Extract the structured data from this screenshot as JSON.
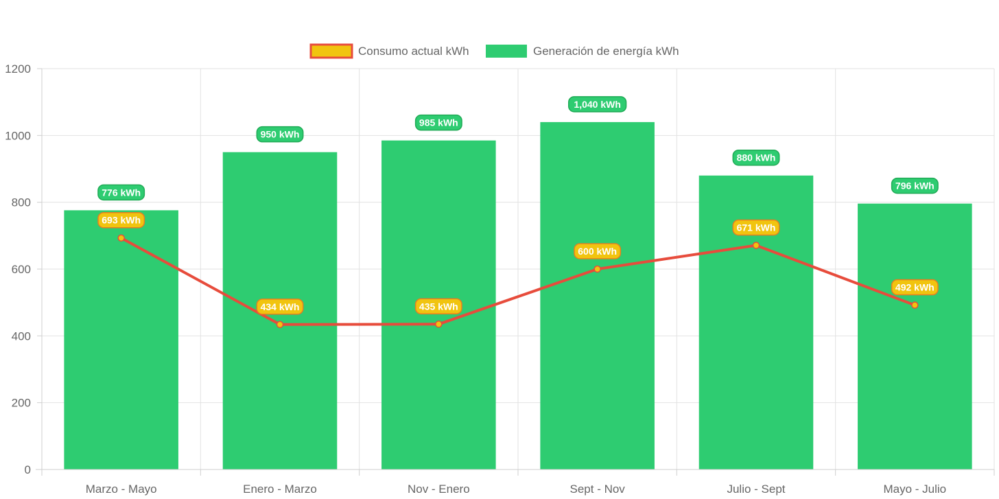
{
  "chart_data": {
    "type": "bar",
    "categories": [
      "Marzo - Mayo",
      "Enero - Marzo",
      "Nov - Enero",
      "Sept - Nov",
      "Julio - Sept",
      "Mayo - Julio"
    ],
    "ylim": [
      0,
      1200
    ],
    "yticks": [
      0,
      200,
      400,
      600,
      800,
      1000,
      1200
    ],
    "ytick_labels": [
      "0",
      "200",
      "400",
      "600",
      "800",
      "1000",
      "1200"
    ],
    "grid": true,
    "legend_position": "top-center",
    "series": [
      {
        "name": "Consumo actual kWh",
        "type": "line",
        "values": [
          693,
          434,
          435,
          600,
          671,
          492
        ],
        "labels": [
          "693 kWh",
          "434 kWh",
          "435 kWh",
          "600 kWh",
          "671 kWh",
          "492 kWh"
        ],
        "color": "#e74c3c",
        "fill": "#f1c40f"
      },
      {
        "name": "Generación de energía kWh",
        "type": "bar",
        "values": [
          776,
          950,
          985,
          1040,
          880,
          796
        ],
        "labels": [
          "776 kWh",
          "950 kWh",
          "985 kWh",
          "1,040 kWh",
          "880 kWh",
          "796 kWh"
        ],
        "color": "#2ecc71"
      }
    ]
  }
}
